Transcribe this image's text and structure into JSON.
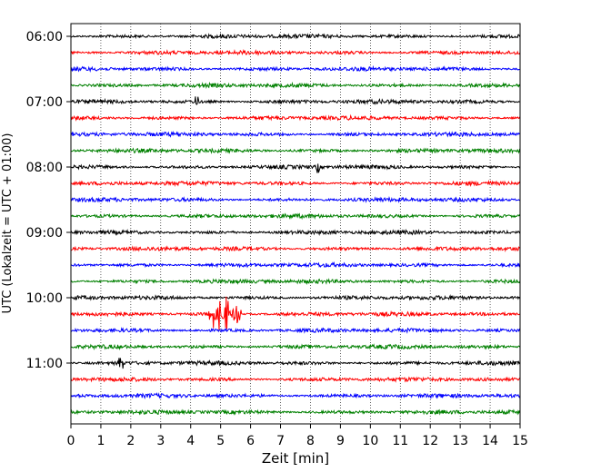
{
  "chart_data": {
    "type": "line",
    "subtype": "helicorder",
    "title": "",
    "xlabel": "Zeit  [min]",
    "ylabel": "UTC (Lokalzeit = UTC + 01:00)",
    "xlim": [
      0,
      15
    ],
    "x_ticks": [
      0,
      1,
      2,
      3,
      4,
      5,
      6,
      7,
      8,
      9,
      10,
      11,
      12,
      13,
      14,
      15
    ],
    "x_tick_labels": [
      "0",
      "1",
      "2",
      "3",
      "4",
      "5",
      "6",
      "7",
      "8",
      "9",
      "10",
      "11",
      "12",
      "13",
      "14",
      "15"
    ],
    "y_tick_labels": [
      "06:00",
      "07:00",
      "08:00",
      "09:00",
      "10:00",
      "11:00"
    ],
    "y_tick_trace_index": [
      0,
      4,
      8,
      12,
      16,
      20
    ],
    "trace_interval_minutes": 15,
    "start_time": "06:00",
    "trace_count": 24,
    "color_cycle": [
      "#000000",
      "#ff0000",
      "#0000ff",
      "#008000"
    ],
    "grid": "vertical-dotted",
    "events": [
      {
        "trace_index": 17,
        "start_min": 4.6,
        "end_min": 5.7,
        "amplitude": "large",
        "note_time": "10:15"
      },
      {
        "trace_index": 4,
        "start_min": 4.15,
        "end_min": 4.25,
        "amplitude": "small"
      },
      {
        "trace_index": 20,
        "start_min": 1.6,
        "end_min": 1.75,
        "amplitude": "small"
      },
      {
        "trace_index": 8,
        "start_min": 8.2,
        "end_min": 8.3,
        "amplitude": "small"
      }
    ]
  }
}
